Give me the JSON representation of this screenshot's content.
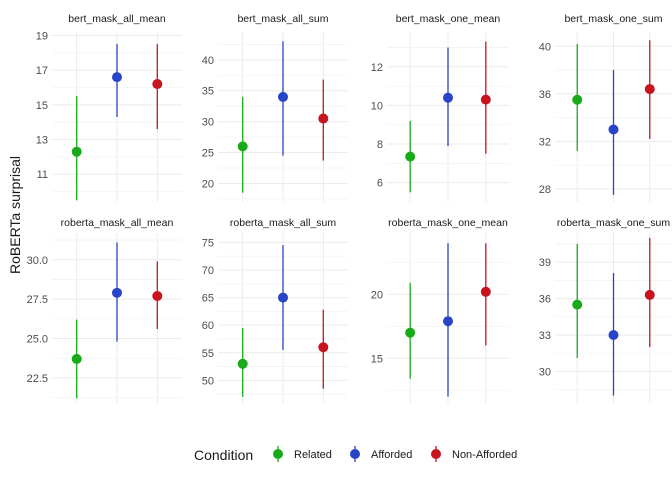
{
  "chart_data": {
    "type": "scatter",
    "ylabel": "RoBERTa surprisal",
    "xlabel": "",
    "grid": true,
    "legend": {
      "title": "Condition",
      "position": "bottom",
      "entries": [
        {
          "name": "Related",
          "color": "#19aa19"
        },
        {
          "name": "Afforded",
          "color": "#2844c8"
        },
        {
          "name": "Non-Afforded",
          "color": "#c8141e"
        }
      ]
    },
    "facets": [
      {
        "title": "bert_mask_all_mean",
        "ylim": [
          9.4,
          19.2
        ],
        "yticks": [
          "11",
          "13",
          "15",
          "17",
          "19"
        ],
        "points": [
          {
            "condition": "Related",
            "mean": 12.3,
            "lower": 9.5,
            "upper": 15.5
          },
          {
            "condition": "Afforded",
            "mean": 16.6,
            "lower": 14.3,
            "upper": 18.5
          },
          {
            "condition": "Non-Afforded",
            "mean": 16.2,
            "lower": 13.6,
            "upper": 18.5
          }
        ]
      },
      {
        "title": "bert_mask_all_sum",
        "ylim": [
          17,
          44.5
        ],
        "yticks": [
          "20",
          "25",
          "30",
          "35",
          "40"
        ],
        "points": [
          {
            "condition": "Related",
            "mean": 26.0,
            "lower": 18.5,
            "upper": 34.0
          },
          {
            "condition": "Afforded",
            "mean": 34.0,
            "lower": 24.5,
            "upper": 43.0
          },
          {
            "condition": "Non-Afforded",
            "mean": 30.5,
            "lower": 23.7,
            "upper": 36.8
          }
        ]
      },
      {
        "title": "bert_mask_one_mean",
        "ylim": [
          5.0,
          13.8
        ],
        "yticks": [
          "6",
          "8",
          "10",
          "12"
        ],
        "points": [
          {
            "condition": "Related",
            "mean": 7.35,
            "lower": 5.5,
            "upper": 9.2
          },
          {
            "condition": "Afforded",
            "mean": 10.4,
            "lower": 7.9,
            "upper": 13.0
          },
          {
            "condition": "Non-Afforded",
            "mean": 10.3,
            "lower": 7.5,
            "upper": 13.3
          }
        ]
      },
      {
        "title": "bert_mask_one_sum",
        "ylim": [
          26.9,
          41.2
        ],
        "yticks": [
          "28",
          "32",
          "36",
          "40"
        ],
        "points": [
          {
            "condition": "Related",
            "mean": 35.5,
            "lower": 31.2,
            "upper": 40.2
          },
          {
            "condition": "Afforded",
            "mean": 33.0,
            "lower": 27.5,
            "upper": 38.0
          },
          {
            "condition": "Non-Afforded",
            "mean": 36.4,
            "lower": 32.2,
            "upper": 40.5
          }
        ]
      },
      {
        "title": "roberta_mask_all_mean",
        "ylim": [
          20.9,
          31.7
        ],
        "yticks": [
          "22.5",
          "25.0",
          "27.5",
          "30.0"
        ],
        "points": [
          {
            "condition": "Related",
            "mean": 23.7,
            "lower": 21.2,
            "upper": 26.2
          },
          {
            "condition": "Afforded",
            "mean": 27.9,
            "lower": 24.8,
            "upper": 31.1
          },
          {
            "condition": "Non-Afforded",
            "mean": 27.7,
            "lower": 25.6,
            "upper": 29.9
          }
        ]
      },
      {
        "title": "roberta_mask_all_sum",
        "ylim": [
          45.9,
          76.7
        ],
        "yticks": [
          "50",
          "55",
          "60",
          "65",
          "70",
          "75"
        ],
        "points": [
          {
            "condition": "Related",
            "mean": 53.0,
            "lower": 47.0,
            "upper": 59.5
          },
          {
            "condition": "Afforded",
            "mean": 65.0,
            "lower": 55.5,
            "upper": 74.5
          },
          {
            "condition": "Non-Afforded",
            "mean": 56.0,
            "lower": 48.5,
            "upper": 62.8
          }
        ]
      },
      {
        "title": "roberta_mask_one_mean",
        "ylim": [
          11.5,
          24.8
        ],
        "yticks": [
          "15",
          "20"
        ],
        "points": [
          {
            "condition": "Related",
            "mean": 17.0,
            "lower": 13.4,
            "upper": 20.9
          },
          {
            "condition": "Afforded",
            "mean": 17.9,
            "lower": 12.0,
            "upper": 24.0
          },
          {
            "condition": "Non-Afforded",
            "mean": 20.2,
            "lower": 16.0,
            "upper": 24.0
          }
        ]
      },
      {
        "title": "roberta_mask_one_sum",
        "ylim": [
          27.4,
          41.4
        ],
        "yticks": [
          "30",
          "33",
          "36",
          "39"
        ],
        "points": [
          {
            "condition": "Related",
            "mean": 35.5,
            "lower": 31.1,
            "upper": 40.5
          },
          {
            "condition": "Afforded",
            "mean": 33.0,
            "lower": 28.0,
            "upper": 38.1
          },
          {
            "condition": "Non-Afforded",
            "mean": 36.3,
            "lower": 32.0,
            "upper": 41.0
          }
        ]
      }
    ]
  }
}
